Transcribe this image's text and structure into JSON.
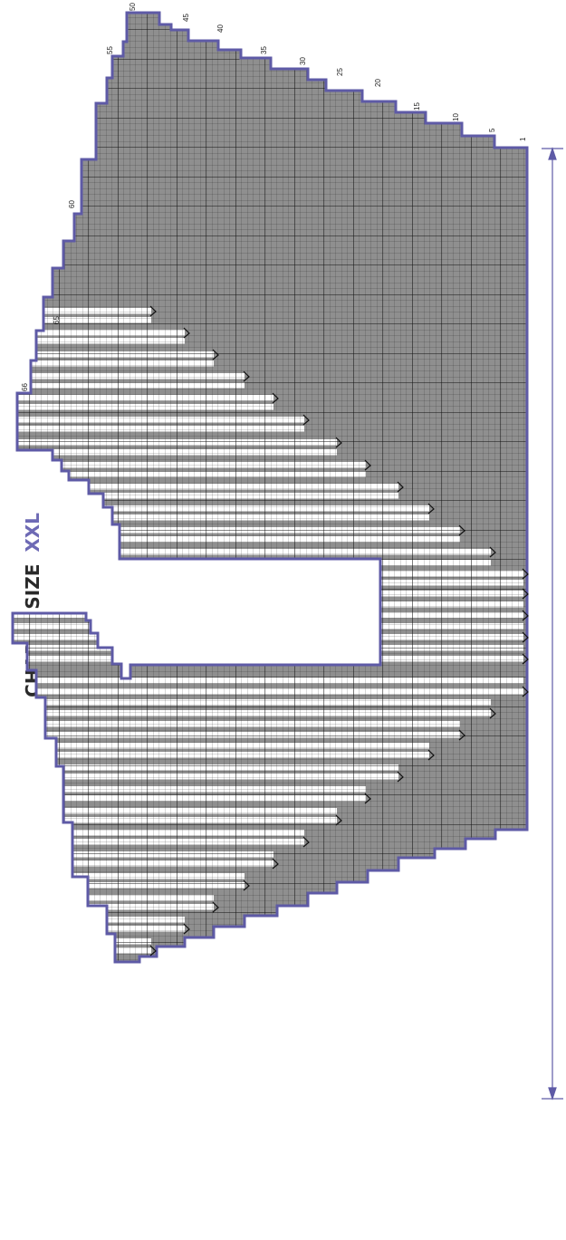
{
  "title": {
    "prefix": "CHART - SIZE",
    "size": "XXL"
  },
  "row_numbers": [
    "1",
    "5",
    "10",
    "15",
    "20",
    "25",
    "30",
    "35",
    "40",
    "45",
    "50",
    "55",
    "60",
    "65",
    "66"
  ],
  "colors": {
    "knit_fill": "#8f8f8f",
    "short_row_fill": "#ffffff",
    "grid_line": "#1a1a1a",
    "outline": "#5e5aa6",
    "accent": "#6e6ab5",
    "title": "#2a2a2a"
  },
  "legend_symbols": {
    "turn_marker": "chevron-right-icon"
  }
}
